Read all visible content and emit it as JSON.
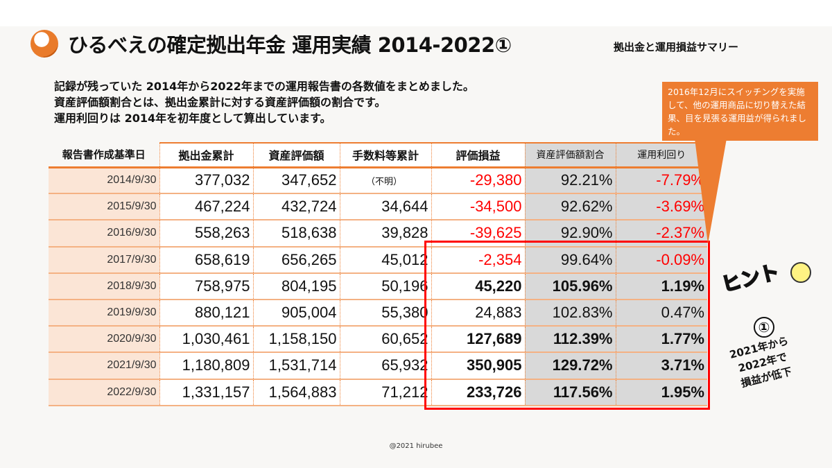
{
  "header": {
    "title": "ひるべえの確定拠出年金 運用実績 2014-2022①",
    "subtitle": "拠出金と運用損益サマリー"
  },
  "description": [
    "記録が残っていた 2014年から2022年までの運用報告書の各数値をまとめました。",
    "資産評価額割合とは、拠出金累計に対する資産評価額の割合です。",
    "運用利回りは 2014年を初年度として算出しています。"
  ],
  "table": {
    "headers": [
      "報告書作成基準日",
      "拠出金累計",
      "資産評価額",
      "手数料等累計",
      "評価損益",
      "資産評価額割合",
      "運用利回り"
    ],
    "rows": [
      {
        "date": "2014/9/30",
        "contrib": "377,032",
        "asset": "347,652",
        "fees": "（不明）",
        "pl": "-29,380",
        "ratio": "92.21%",
        "yield": "-7.79%",
        "neg": true,
        "bold": false
      },
      {
        "date": "2015/9/30",
        "contrib": "467,224",
        "asset": "432,724",
        "fees": "34,644",
        "pl": "-34,500",
        "ratio": "92.62%",
        "yield": "-3.69%",
        "neg": true,
        "bold": false
      },
      {
        "date": "2016/9/30",
        "contrib": "558,263",
        "asset": "518,638",
        "fees": "39,828",
        "pl": "-39,625",
        "ratio": "92.90%",
        "yield": "-2.37%",
        "neg": true,
        "bold": false
      },
      {
        "date": "2017/9/30",
        "contrib": "658,619",
        "asset": "656,265",
        "fees": "45,012",
        "pl": "-2,354",
        "ratio": "99.64%",
        "yield": "-0.09%",
        "neg": true,
        "bold": false
      },
      {
        "date": "2018/9/30",
        "contrib": "758,975",
        "asset": "804,195",
        "fees": "50,196",
        "pl": "45,220",
        "ratio": "105.96%",
        "yield": "1.19%",
        "neg": false,
        "bold": true
      },
      {
        "date": "2019/9/30",
        "contrib": "880,121",
        "asset": "905,004",
        "fees": "55,380",
        "pl": "24,883",
        "ratio": "102.83%",
        "yield": "0.47%",
        "neg": false,
        "bold": false
      },
      {
        "date": "2020/9/30",
        "contrib": "1,030,461",
        "asset": "1,158,150",
        "fees": "60,652",
        "pl": "127,689",
        "ratio": "112.39%",
        "yield": "1.77%",
        "neg": false,
        "bold": true
      },
      {
        "date": "2021/9/30",
        "contrib": "1,180,809",
        "asset": "1,531,714",
        "fees": "65,932",
        "pl": "350,905",
        "ratio": "129.72%",
        "yield": "3.71%",
        "neg": false,
        "bold": true
      },
      {
        "date": "2022/9/30",
        "contrib": "1,331,157",
        "asset": "1,564,883",
        "fees": "71,212",
        "pl": "233,726",
        "ratio": "117.56%",
        "yield": "1.95%",
        "neg": false,
        "bold": true
      }
    ]
  },
  "callout": {
    "text": "2016年12月にスイッチングを実施して、他の運用商品に切り替えた結果、目を見張る運用益が得られました。"
  },
  "hint": {
    "label": "ヒント",
    "number": "①",
    "note": [
      "2021年から",
      "2022年で",
      "損益が低下"
    ]
  },
  "footer": "@2021 hirubee",
  "colors": {
    "accent": "#ed7d31",
    "negative": "#ff0000",
    "highlight_box": "#ff0000",
    "date_bg": "#fbe5d6",
    "gray_bg": "#d9d9d9"
  }
}
